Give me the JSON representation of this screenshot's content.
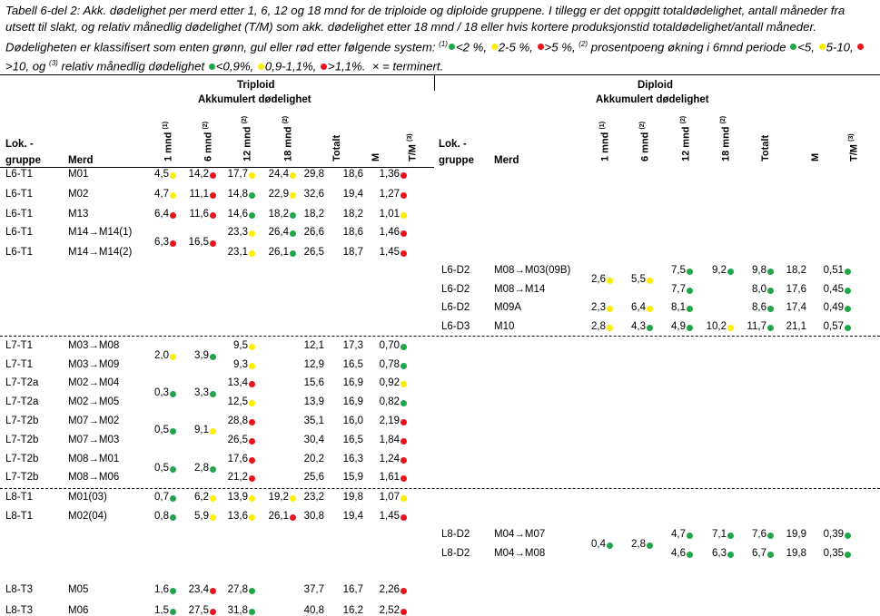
{
  "caption": {
    "text": "Tabell 6-del 2: Akk. dødelighet per merd etter 1, 6, 12 og 18 mnd for de triploide og diploide gruppene. I tillegg er det oppgitt totaldødelighet, antall måneder fra utsett til slakt, og relativ månedlig dødelighet (T/M) som akk. dødelighet etter 18 mnd / 18 eller hvis kortere produksjonstid totaldødelighet/antall måneder. Dødeligheten er klassifisert som enten grønn, gul eller rød etter følgende system:",
    "legend1": [
      "<2 %,",
      "2-5 %,",
      ">5 %,"
    ],
    "mid2": "prosentpoeng økning i 6mnd periode",
    "legend2": [
      "<5,",
      "5-10,",
      ">10, og"
    ],
    "mid3": "relativ månedlig dødelighet",
    "legend3": [
      "<0,9%,",
      "0,9-1,1%,",
      ">1,1%."
    ],
    "tail": "× = terminert.",
    "sup1": "(1)",
    "sup2": "(2)",
    "sup3": "(3)"
  },
  "colors": {
    "green": "#1fa64a",
    "yellow": "#ffee00",
    "red": "#e8141a"
  },
  "headers": {
    "triploid": "Triploid",
    "diploid": "Diploid",
    "akk": "Akkumulert dødelighet",
    "lok": "Lok. -",
    "gruppe": "gruppe",
    "merd": "Merd",
    "m1": "1 mnd",
    "m6": "6 mnd",
    "m12": "12 mnd",
    "m18": "18 mnd",
    "totalt": "Totalt",
    "m": "M",
    "tm": "T/M",
    "s1": "(1)",
    "s2": "(2)",
    "s3": "(3)"
  },
  "triploid_rows": [
    {
      "lok": "L6-T1",
      "merd": "M01",
      "m1": "4,5",
      "c1": "yellow",
      "m6": "14,2",
      "c6": "red",
      "m12": "17,7",
      "c12": "yellow",
      "m18": "24,4",
      "c18": "yellow",
      "tot": "29,8",
      "m": "18,6",
      "tm": "1,36",
      "ctm": "red"
    },
    {
      "lok": "L6-T1",
      "merd": "M02",
      "m1": "4,7",
      "c1": "yellow",
      "m6": "11,1",
      "c6": "red",
      "m12": "14,8",
      "c12": "green",
      "m18": "22,9",
      "c18": "yellow",
      "tot": "32,6",
      "m": "19,4",
      "tm": "1,27",
      "ctm": "red"
    },
    {
      "lok": "L6-T1",
      "merd": "M13",
      "m1": "6,4",
      "c1": "red",
      "m6": "11,6",
      "c6": "red",
      "m12": "14,6",
      "c12": "green",
      "m18": "18,2",
      "c18": "green",
      "tot": "18,2",
      "m": "18,2",
      "tm": "1,01",
      "ctm": "yellow"
    },
    {
      "lok": "L6-T1",
      "merd": "M14→M14(1)",
      "m1": "6,3",
      "c1": "red",
      "m6": "16,5",
      "c6": "red",
      "m12": "23,3",
      "c12": "yellow",
      "m18": "26,4",
      "c18": "green",
      "tot": "26,6",
      "m": "18,6",
      "tm": "1,46",
      "ctm": "red"
    },
    {
      "lok": "L6-T1",
      "merd": "M14→M14(2)",
      "m12": "23,1",
      "c12": "yellow",
      "m18": "26,1",
      "c18": "green",
      "tot": "26,5",
      "m": "18,7",
      "tm": "1,45",
      "ctm": "red"
    },
    {
      "lok": "L7-T1",
      "merd": "M03→M08",
      "m1": "2,0",
      "c1": "yellow",
      "m6": "3,9",
      "c6": "green",
      "m12": "9,5",
      "c12": "yellow",
      "tot": "12,1",
      "m": "17,3",
      "tm": "0,70",
      "ctm": "green"
    },
    {
      "lok": "L7-T1",
      "merd": "M03→M09",
      "m12": "9,3",
      "c12": "yellow",
      "tot": "12,9",
      "m": "16,5",
      "tm": "0,78",
      "ctm": "green"
    },
    {
      "lok": "L7-T2a",
      "merd": "M02→M04",
      "m1": "0,3",
      "c1": "green",
      "m6": "3,3",
      "c6": "green",
      "m12": "13,4",
      "c12": "red",
      "tot": "15,6",
      "m": "16,9",
      "tm": "0,92",
      "ctm": "yellow"
    },
    {
      "lok": "L7-T2a",
      "merd": "M02→M05",
      "m12": "12,5",
      "c12": "yellow",
      "tot": "13,9",
      "m": "16,9",
      "tm": "0,82",
      "ctm": "green"
    },
    {
      "lok": "L7-T2b",
      "merd": "M07→M02",
      "m1": "0,5",
      "c1": "green",
      "m6": "9,1",
      "c6": "yellow",
      "m12": "28,8",
      "c12": "red",
      "tot": "35,1",
      "m": "16,0",
      "tm": "2,19",
      "ctm": "red"
    },
    {
      "lok": "L7-T2b",
      "merd": "M07→M03",
      "m12": "26,5",
      "c12": "red",
      "tot": "30,4",
      "m": "16,5",
      "tm": "1,84",
      "ctm": "red"
    },
    {
      "lok": "L7-T2b",
      "merd": "M08→M01",
      "m1": "0,5",
      "c1": "green",
      "m6": "2,8",
      "c6": "green",
      "m12": "17,6",
      "c12": "red",
      "tot": "20,2",
      "m": "16,3",
      "tm": "1,24",
      "ctm": "red"
    },
    {
      "lok": "L7-T2b",
      "merd": "M08→M06",
      "m12": "21,2",
      "c12": "red",
      "tot": "25,6",
      "m": "15,9",
      "tm": "1,61",
      "ctm": "red"
    },
    {
      "lok": "L8-T1",
      "merd": "M01(03)",
      "m1": "0,7",
      "c1": "green",
      "m6": "6,2",
      "c6": "yellow",
      "m12": "13,9",
      "c12": "yellow",
      "m18": "19,2",
      "c18": "yellow",
      "tot": "23,2",
      "m": "19,8",
      "tm": "1,07",
      "ctm": "yellow"
    },
    {
      "lok": "L8-T1",
      "merd": "M02(04)",
      "m1": "0,8",
      "c1": "green",
      "m6": "5,9",
      "c6": "yellow",
      "m12": "13,6",
      "c12": "yellow",
      "m18": "26,1",
      "c18": "red",
      "tot": "30,8",
      "m": "19,4",
      "tm": "1,45",
      "ctm": "red"
    },
    {
      "lok": "L8-T3",
      "merd": "M05",
      "m1": "1,6",
      "c1": "green",
      "m6": "23,4",
      "c6": "red",
      "m12": "27,8",
      "c12": "green",
      "tot": "37,7",
      "m": "16,7",
      "tm": "2,26",
      "ctm": "red"
    },
    {
      "lok": "L8-T3",
      "merd": "M06",
      "m1": "1,5",
      "c1": "green",
      "m6": "27,5",
      "c6": "red",
      "m12": "31,8",
      "c12": "green",
      "tot": "40,8",
      "m": "16,2",
      "tm": "2,52",
      "ctm": "red"
    }
  ],
  "diploid_rows": [
    {
      "lok": "L6-D2",
      "merd": "M08→M03(09B)",
      "m1": "2,6",
      "c1": "yellow",
      "m6": "5,5",
      "c6": "yellow",
      "m12": "7,5",
      "c12": "green",
      "m18": "9,2",
      "c18": "green",
      "tot": "9,8",
      "ctot": "green",
      "m": "18,2",
      "tm": "0,51",
      "ctm": "green"
    },
    {
      "lok": "L6-D2",
      "merd": "M08→M14",
      "m12": "7,7",
      "c12": "green",
      "tot": "8,0",
      "ctot": "green",
      "m": "17,6",
      "tm": "0,45",
      "ctm": "green"
    },
    {
      "lok": "L6-D2",
      "merd": "M09A",
      "m1": "2,3",
      "c1": "yellow",
      "m6": "6,4",
      "c6": "yellow",
      "m12": "8,1",
      "c12": "green",
      "tot": "8,6",
      "ctot": "green",
      "m": "17,4",
      "tm": "0,49",
      "ctm": "green"
    },
    {
      "lok": "L6-D3",
      "merd": "M10",
      "m1": "2,8",
      "c1": "yellow",
      "m6": "4,3",
      "c6": "green",
      "m12": "4,9",
      "c12": "green",
      "m18": "10,2",
      "c18": "yellow",
      "tot": "11,7",
      "ctot": "green",
      "m": "21,1",
      "tm": "0,57",
      "ctm": "green"
    },
    {
      "lok": "L8-D2",
      "merd": "M04→M07",
      "m1": "0,4",
      "c1": "green",
      "m6": "2,8",
      "c6": "green",
      "m12": "4,7",
      "c12": "green",
      "m18": "7,1",
      "c18": "green",
      "tot": "7,6",
      "ctot": "green",
      "m": "19,9",
      "tm": "0,39",
      "ctm": "green"
    },
    {
      "lok": "L8-D2",
      "merd": "M04→M08",
      "m12": "4,6",
      "c12": "green",
      "m18": "6,3",
      "c18": "green",
      "tot": "6,7",
      "ctot": "green",
      "m": "19,8",
      "tm": "0,35",
      "ctm": "green"
    }
  ]
}
